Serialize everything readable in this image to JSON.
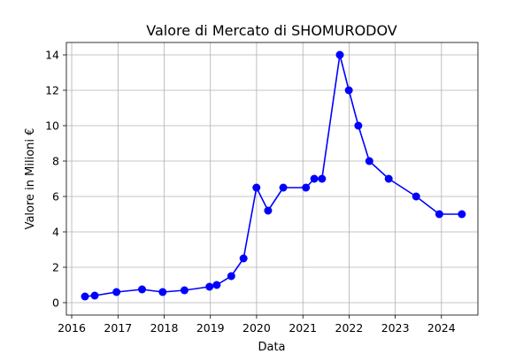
{
  "chart_data": {
    "type": "line",
    "title": "Valore di Mercato di SHOMURODOV",
    "xlabel": "Data",
    "ylabel": "Valore in Milioni €",
    "x_ticks": [
      "2016",
      "2017",
      "2018",
      "2019",
      "2020",
      "2021",
      "2022",
      "2023",
      "2024"
    ],
    "y_ticks": [
      "0",
      "2",
      "4",
      "6",
      "8",
      "10",
      "12",
      "14"
    ],
    "xlim": [
      "2015-11-20",
      "2024-10-15"
    ],
    "ylim": [
      -0.7,
      14.7
    ],
    "grid": true,
    "color": "#0000ff",
    "series": [
      {
        "x": [
          "2016-04-15",
          "2016-07-01",
          "2016-12-20",
          "2017-07-10",
          "2017-12-20",
          "2018-06-10",
          "2018-12-25",
          "2019-02-20",
          "2019-06-15",
          "2019-09-20",
          "2019-12-31",
          "2020-04-01",
          "2020-07-30",
          "2021-01-25",
          "2021-04-01",
          "2021-06-01",
          "2021-10-20",
          "2021-12-30",
          "2022-03-15",
          "2022-06-10",
          "2022-11-10",
          "2023-06-15",
          "2023-12-15",
          "2024-06-10"
        ],
        "values": [
          0.35,
          0.4,
          0.6,
          0.75,
          0.6,
          0.7,
          0.9,
          1.0,
          1.5,
          2.5,
          6.5,
          5.2,
          6.5,
          6.5,
          7.0,
          7.0,
          14.0,
          12.0,
          10.0,
          8.0,
          7.0,
          6.0,
          5.0,
          5.0
        ]
      }
    ]
  }
}
